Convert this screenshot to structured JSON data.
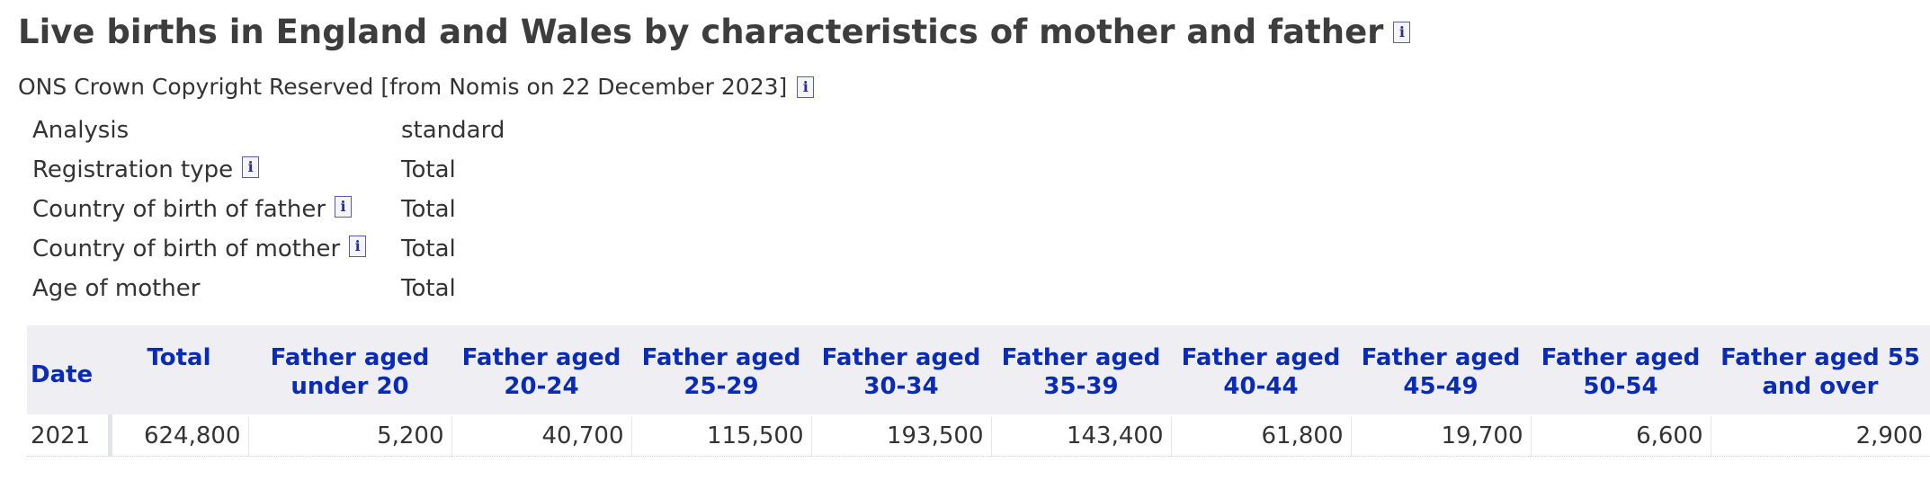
{
  "title": "Live births in England and Wales by characteristics of mother and father",
  "info_glyph": "i",
  "source": "ONS Crown Copyright Reserved [from Nomis on 22 December 2023]",
  "meta": [
    {
      "label": "Analysis",
      "value": "standard",
      "info": false
    },
    {
      "label": "Registration type",
      "value": "Total",
      "info": true
    },
    {
      "label": "Country of birth of father",
      "value": "Total",
      "info": true
    },
    {
      "label": "Country of birth of mother",
      "value": "Total",
      "info": true
    },
    {
      "label": "Age of mother",
      "value": "Total",
      "info": false
    }
  ],
  "table": {
    "headers": [
      "Date",
      "Total",
      "Father aged under 20",
      "Father aged 20-24",
      "Father aged 25-29",
      "Father aged 30-34",
      "Father aged 35-39",
      "Father aged 40-44",
      "Father aged 45-49",
      "Father aged 50-54",
      "Father aged 55 and over"
    ],
    "rows": [
      [
        "2021",
        "624,800",
        "5,200",
        "40,700",
        "115,500",
        "193,500",
        "143,400",
        "61,800",
        "19,700",
        "6,600",
        "2,900"
      ]
    ]
  },
  "colors": {
    "header_text": "#0a2ab8",
    "header_bg": "#efeef3",
    "title_text": "#3d3d3d",
    "info_border": "#5a5aa8"
  }
}
